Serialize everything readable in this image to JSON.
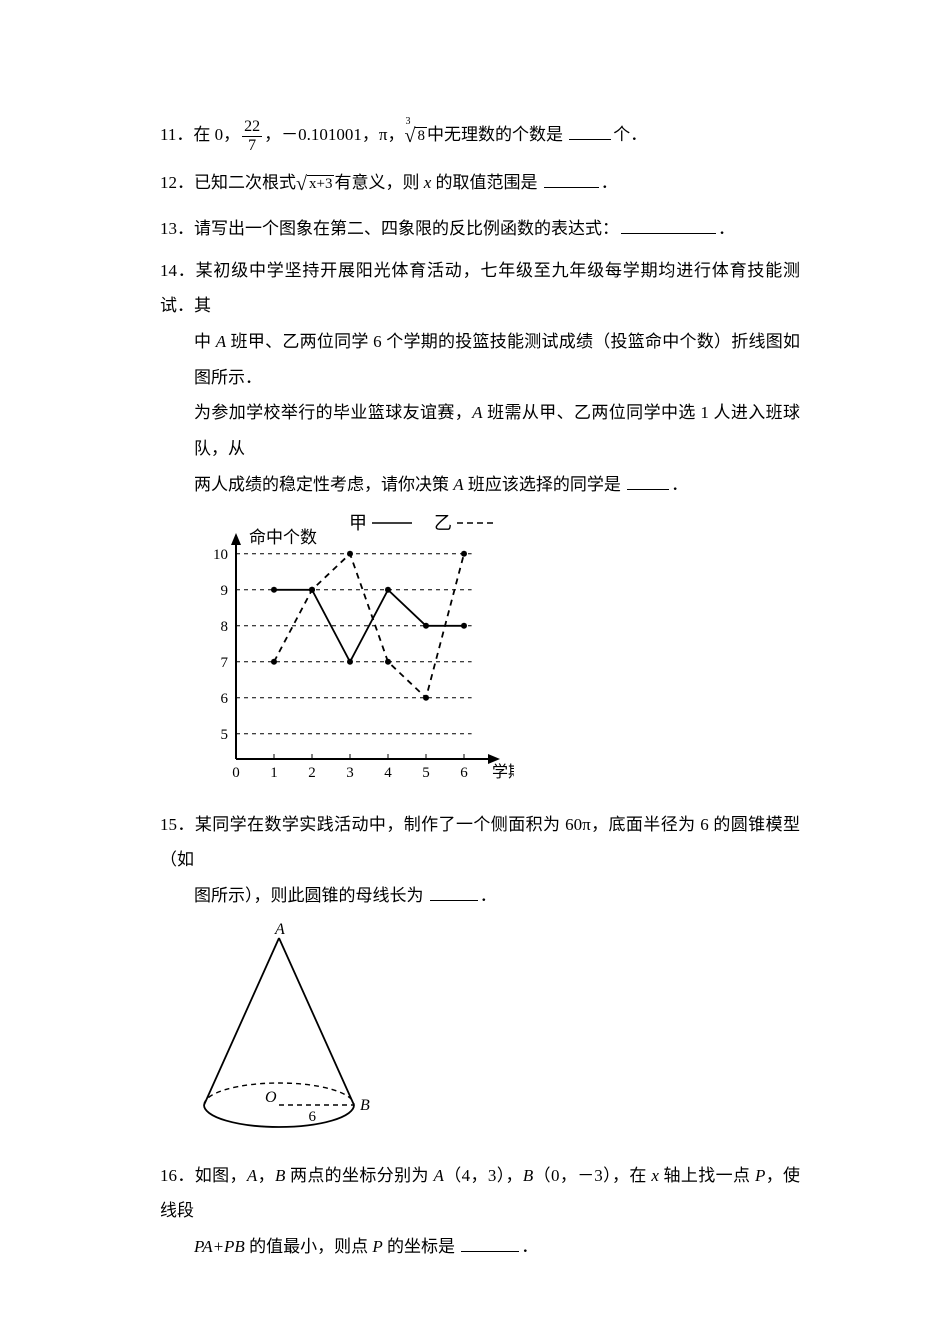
{
  "q11": {
    "num": "11．",
    "t1": "在 0，",
    "frac_n": "22",
    "frac_d": "7",
    "t2": "，－0.101001，π，",
    "cube_idx": "3",
    "cube_rad": "8",
    "t3": "中无理数的个数是 ",
    "t4": "个．"
  },
  "q12": {
    "num": "12．",
    "t1": "已知二次根式",
    "rad": "x+3",
    "t2": "有意义，则 ",
    "var": "x",
    "t3": " 的取值范围是 ",
    "t4": "．"
  },
  "q13": {
    "num": "13．",
    "t1": "请写出一个图象在第二、四象限的反比例函数的表达式：",
    "t2": "．"
  },
  "q14": {
    "num": "14．",
    "l1": "某初级中学坚持开展阳光体育活动，七年级至九年级每学期均进行体育技能测试．其",
    "l2a": "中 ",
    "l2a_var": "A",
    "l2b": " 班甲、乙两位同学 6 个学期的投篮技能测试成绩（投篮命中个数）折线图如图所示．",
    "l3a": "为参加学校举行的毕业篮球友谊赛，",
    "l3a_var": "A",
    "l3b": " 班需从甲、乙两位同学中选 1 人进入班球队，从",
    "l4a": "两人成绩的稳定性考虑，请你决策 ",
    "l4a_var": "A",
    "l4b": " 班应该选择的同学是 ",
    "l4c": "．"
  },
  "legend": {
    "jia": "甲",
    "yi": "乙"
  },
  "chart": {
    "ylabel": "命中个数",
    "xlabel": "学期",
    "yticks": [
      "5",
      "6",
      "7",
      "8",
      "9",
      "10"
    ],
    "xticks": [
      "0",
      "1",
      "2",
      "3",
      "4",
      "5",
      "6"
    ],
    "jia_data": [
      [
        1,
        9
      ],
      [
        2,
        9
      ],
      [
        3,
        7
      ],
      [
        4,
        9
      ],
      [
        5,
        8
      ],
      [
        6,
        8
      ]
    ],
    "yi_data": [
      [
        1,
        7
      ],
      [
        2,
        9
      ],
      [
        3,
        10
      ],
      [
        4,
        7
      ],
      [
        5,
        6
      ],
      [
        6,
        10
      ]
    ],
    "colors": {
      "axis": "#000000",
      "grid": "#000000"
    }
  },
  "q15": {
    "num": "15．",
    "l1": "某同学在数学实践活动中，制作了一个侧面积为 60π，底面半径为 6 的圆锥模型（如",
    "l2a": "图所示），则此圆锥的母线长为 ",
    "l2b": "．"
  },
  "cone": {
    "A": "A",
    "O": "O",
    "B": "B",
    "r": "6"
  },
  "q16": {
    "num": "16．",
    "l1a": "如图，",
    "l1_varA": "A",
    "l1b": "，",
    "l1_varB": "B",
    "l1c": " 两点的坐标分别为 ",
    "l1_varA2": "A",
    "l1d": "（4，3），",
    "l1_varB2": "B",
    "l1e": "（0，－3），在 ",
    "l1_varx": "x",
    "l1f": " 轴上找一点 ",
    "l1_varP": "P",
    "l1g": "，使线段",
    "l2a": "PA+PB ",
    "l2b": "的值最小，则点 ",
    "l2_varP": "P",
    "l2c": " 的坐标是 ",
    "l2d": "．"
  }
}
